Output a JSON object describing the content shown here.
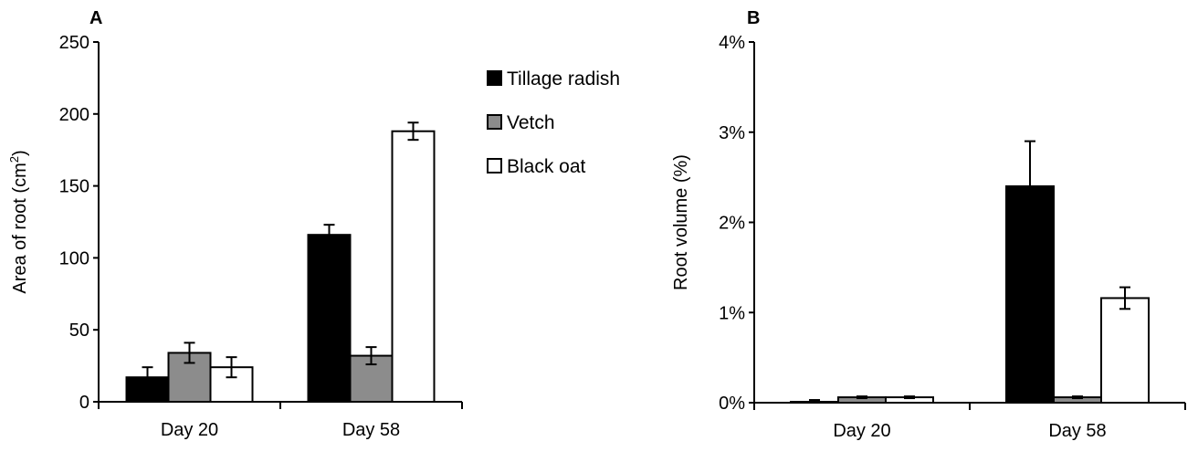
{
  "chart_data": [
    {
      "panel": "A",
      "type": "bar",
      "ylabel": "Area of root (cm²)",
      "xlabel": "",
      "categories": [
        "Day 20",
        "Day 58"
      ],
      "ylim": [
        0,
        250
      ],
      "yticks": [
        "0",
        "50",
        "100",
        "150",
        "200",
        "250"
      ],
      "series": [
        {
          "name": "Tillage radish",
          "values": [
            17,
            116
          ],
          "errors": [
            7,
            7
          ],
          "color": "#000000"
        },
        {
          "name": "Vetch",
          "values": [
            34,
            32
          ],
          "errors": [
            7,
            6
          ],
          "color": "#8c8c8c"
        },
        {
          "name": "Black oat",
          "values": [
            24,
            188
          ],
          "errors": [
            7,
            6
          ],
          "color": "#ffffff"
        }
      ],
      "legend": "right",
      "grid": false
    },
    {
      "panel": "B",
      "type": "bar",
      "ylabel": "Root volume (%)",
      "xlabel": "",
      "categories": [
        "Day 20",
        "Day 58"
      ],
      "ylim": [
        0,
        4
      ],
      "yticks": [
        "0%",
        "1%",
        "2%",
        "3%",
        "4%"
      ],
      "series": [
        {
          "name": "Tillage radish",
          "values": [
            0.01,
            2.4
          ],
          "errors": [
            0.02,
            0.5
          ],
          "color": "#000000"
        },
        {
          "name": "Vetch",
          "values": [
            0.06,
            0.06
          ],
          "errors": [
            0.01,
            0.01
          ],
          "color": "#8c8c8c"
        },
        {
          "name": "Black oat",
          "values": [
            0.06,
            1.16
          ],
          "errors": [
            0.01,
            0.12
          ],
          "color": "#ffffff"
        }
      ],
      "grid": false
    }
  ]
}
